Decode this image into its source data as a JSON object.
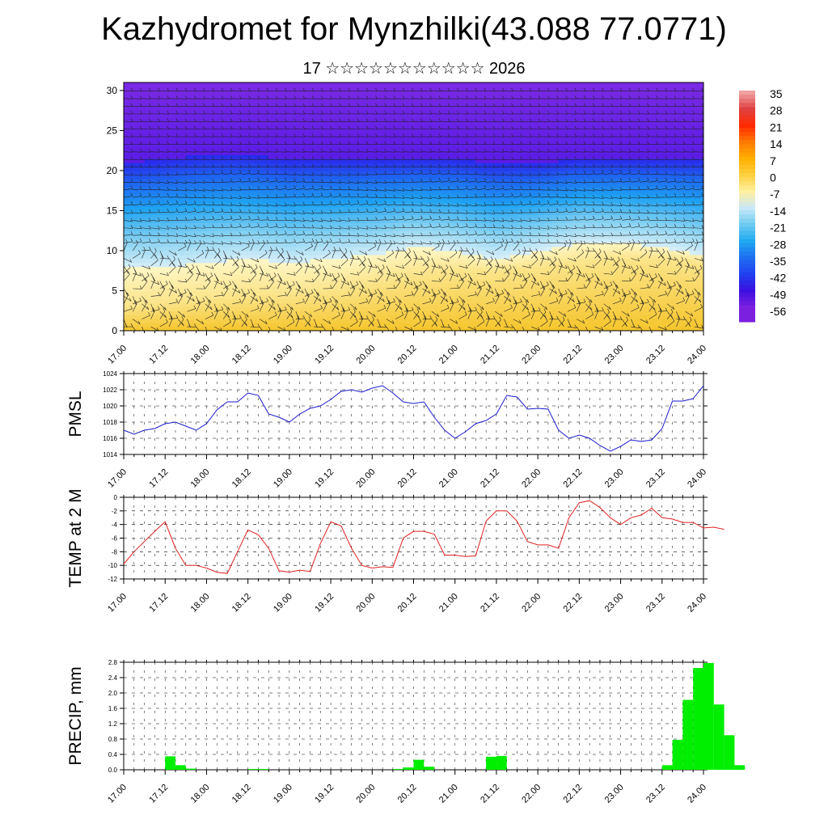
{
  "title": "Kazhydromet for Mynzhilki(43.088 77.0771)",
  "subtitle": "17 ☆☆☆☆☆☆☆☆☆☆☆ 2026",
  "time_labels": [
    "17.00",
    "17.12",
    "18.00",
    "18.12",
    "19.00",
    "19.12",
    "20.00",
    "20.12",
    "21.00",
    "21.12",
    "22.00",
    "22.12",
    "23.00",
    "23.12",
    "24.00"
  ],
  "chart_data": [
    {
      "type": "heatmap",
      "title": "Temperature cross-section with wind barbs",
      "xlabel": "",
      "ylabel": "",
      "xlim": [
        0,
        168
      ],
      "ylim": [
        0,
        31
      ],
      "y_ticks": [
        0,
        5,
        10,
        15,
        20,
        25,
        30
      ],
      "colorbar_labels": [
        "35",
        "28",
        "21",
        "14",
        "7",
        "0",
        "-7",
        "-14",
        "-21",
        "-28",
        "-35",
        "-42",
        "-49",
        "-56"
      ],
      "colorbar_colors": [
        "#f0a0a0",
        "#e04040",
        "#ff2a00",
        "#ff7a00",
        "#ffb000",
        "#ffd040",
        "#fff0a0",
        "#c8e8f8",
        "#6ccaf0",
        "#20a8f0",
        "#1e6ef0",
        "#2040f0",
        "#3c10e0",
        "#7c20e0"
      ],
      "temperature_profile": {
        "x": [
          0,
          12,
          24,
          36,
          48,
          60,
          72,
          84,
          96,
          108,
          120,
          132,
          144,
          156,
          168
        ],
        "isotherm_0_height": [
          3,
          3.5,
          4,
          4.5,
          4.5,
          5,
          6,
          7,
          7.5,
          7.5,
          8,
          8.5,
          9,
          9,
          8.5
        ],
        "isotherm_minus14_height": [
          8,
          8,
          8.5,
          9,
          8.5,
          9,
          9.5,
          10.5,
          10,
          9,
          10,
          11,
          11,
          10.5,
          9.5
        ],
        "isotherm_minus40_height": [
          21,
          21.5,
          22,
          22,
          21.5,
          21.5,
          21.5,
          21.5,
          21.5,
          21,
          21,
          21.5,
          21.5,
          21.5,
          21.5
        ]
      }
    },
    {
      "type": "line",
      "ylabel": "PMSL",
      "ylim": [
        1014,
        1024
      ],
      "y_ticks": [
        1014,
        1016,
        1018,
        1020,
        1022,
        1024
      ],
      "x_step_hours": 3,
      "color": "#1a1acd",
      "values": [
        1017,
        1016.5,
        1017,
        1017.2,
        1017.8,
        1018,
        1017.5,
        1017,
        1017.8,
        1019.5,
        1020.5,
        1020.5,
        1021.6,
        1021.3,
        1019,
        1018.6,
        1018,
        1019,
        1019.7,
        1020,
        1020.8,
        1021.8,
        1022,
        1021.7,
        1022.2,
        1022.5,
        1021.6,
        1020.5,
        1020.3,
        1020.5,
        1018.6,
        1017,
        1016,
        1016.8,
        1017.8,
        1018.2,
        1019,
        1021.3,
        1021.1,
        1019.6,
        1019.7,
        1019.6,
        1017,
        1016,
        1016.4,
        1016,
        1015.1,
        1014.4,
        1015,
        1015.8,
        1015.6,
        1015.8,
        1017.2,
        1020.6,
        1020.6,
        1020.9,
        1022.5
      ]
    },
    {
      "type": "line",
      "ylabel": "TEMP at 2 M",
      "ylim": [
        -12,
        0
      ],
      "y_ticks": [
        -12,
        -10,
        -8,
        -6,
        -4,
        -2,
        0
      ],
      "x_step_hours": 3,
      "color": "#e02020",
      "values": [
        -9.8,
        -8,
        -6.5,
        -5,
        -3.6,
        -7.5,
        -10,
        -10,
        -10.4,
        -11,
        -11.2,
        -8,
        -4.8,
        -5.5,
        -7.5,
        -10.8,
        -11,
        -10.7,
        -10.9,
        -6.8,
        -3.6,
        -4.2,
        -7.5,
        -10,
        -10.4,
        -10.2,
        -10.3,
        -6,
        -5,
        -5,
        -5.4,
        -8.5,
        -8.5,
        -8.7,
        -8.6,
        -3.5,
        -2,
        -2,
        -3.5,
        -6.5,
        -7,
        -7,
        -7.5,
        -3,
        -0.8,
        -0.5,
        -1.5,
        -3,
        -4,
        -3,
        -2.6,
        -1.6,
        -3,
        -3.2,
        -3.7,
        -3.7,
        -4.5,
        -4.4,
        -4.7
      ]
    },
    {
      "type": "bar",
      "ylabel": "PRECIP, mm",
      "ylim": [
        0,
        2.8
      ],
      "y_ticks": [
        0.0,
        0.4,
        0.8,
        1.2,
        1.6,
        2.0,
        2.4,
        2.8
      ],
      "y_tick_labels": [
        "0.0",
        "0.4",
        "0.8",
        "1.2",
        "1.6",
        "2.0",
        "2.4",
        "2.8"
      ],
      "x_step_hours": 3,
      "color": "#00ee00",
      "values": [
        0,
        0,
        0,
        0,
        0.35,
        0.12,
        0.03,
        0,
        0,
        0,
        0,
        0,
        0.02,
        0.02,
        0,
        0,
        0,
        0,
        0,
        0,
        0,
        0,
        0,
        0,
        0,
        0,
        0.02,
        0.06,
        0.26,
        0.08,
        0,
        0,
        0,
        0,
        0,
        0.34,
        0.36,
        0,
        0,
        0,
        0,
        0,
        0,
        0,
        0,
        0,
        0,
        0,
        0,
        0,
        0,
        0,
        0.12,
        0.78,
        1.82,
        2.65,
        2.78,
        1.7,
        0.9,
        0.12
      ]
    }
  ]
}
